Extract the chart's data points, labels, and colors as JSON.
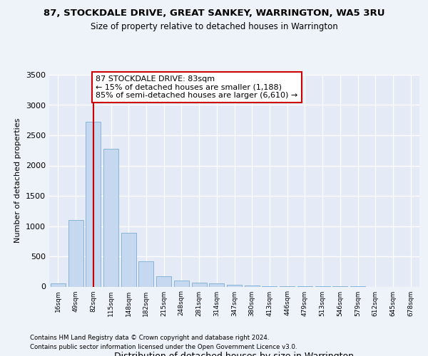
{
  "title1": "87, STOCKDALE DRIVE, GREAT SANKEY, WARRINGTON, WA5 3RU",
  "title2": "Size of property relative to detached houses in Warrington",
  "xlabel": "Distribution of detached houses by size in Warrington",
  "ylabel": "Number of detached properties",
  "categories": [
    "16sqm",
    "49sqm",
    "82sqm",
    "115sqm",
    "148sqm",
    "182sqm",
    "215sqm",
    "248sqm",
    "281sqm",
    "314sqm",
    "347sqm",
    "380sqm",
    "413sqm",
    "446sqm",
    "479sqm",
    "513sqm",
    "546sqm",
    "579sqm",
    "612sqm",
    "645sqm",
    "678sqm"
  ],
  "values": [
    50,
    1100,
    2720,
    2280,
    890,
    415,
    175,
    105,
    65,
    50,
    35,
    20,
    10,
    5,
    3,
    2,
    1,
    1,
    0,
    0,
    0
  ],
  "bar_color": "#c5d8ef",
  "bar_edge_color": "#7aadd4",
  "vline_x": 2,
  "vline_color": "#cc0000",
  "annotation_text": "87 STOCKDALE DRIVE: 83sqm\n← 15% of detached houses are smaller (1,188)\n85% of semi-detached houses are larger (6,610) →",
  "annotation_box_color": "#ffffff",
  "annotation_box_edge": "#cc0000",
  "ylim": [
    0,
    3500
  ],
  "yticks": [
    0,
    500,
    1000,
    1500,
    2000,
    2500,
    3000,
    3500
  ],
  "footer1": "Contains HM Land Registry data © Crown copyright and database right 2024.",
  "footer2": "Contains public sector information licensed under the Open Government Licence v3.0.",
  "bg_color": "#eef2f9",
  "plot_bg_color": "#e4eaf6"
}
